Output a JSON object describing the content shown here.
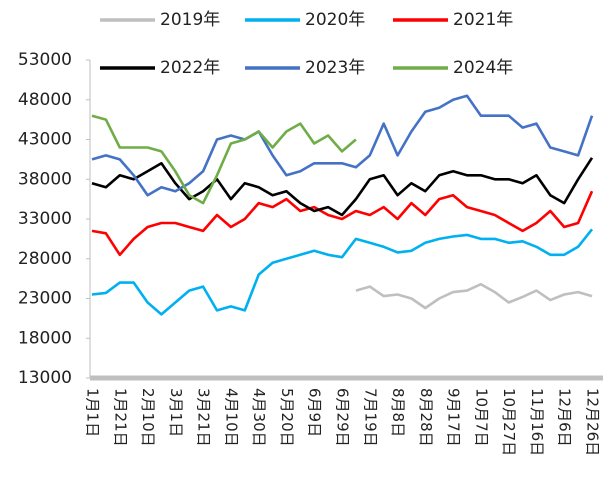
{
  "chart_data": {
    "type": "line",
    "categories": [
      "1月1日",
      null,
      "1月21日",
      null,
      "2月10日",
      null,
      "3月1日",
      null,
      "3月21日",
      null,
      "4月10日",
      null,
      "4月30日",
      null,
      "5月20日",
      null,
      "6月9日",
      null,
      "6月29日",
      null,
      "7月19日",
      null,
      "8月8日",
      null,
      "8月28日",
      null,
      "9月17日",
      null,
      "10月7日",
      null,
      "10月27日",
      null,
      "11月16日",
      null,
      "12月6日",
      null,
      "12月26日"
    ],
    "series": [
      {
        "name": "2019年",
        "color": "#bfbfbf",
        "values": [
          null,
          null,
          null,
          null,
          null,
          null,
          null,
          null,
          null,
          null,
          null,
          null,
          null,
          null,
          null,
          null,
          null,
          null,
          null,
          24000,
          24500,
          23300,
          23500,
          23000,
          21800,
          23000,
          23800,
          24000,
          24800,
          23800,
          22500,
          23200,
          24000,
          22800,
          23500,
          23800,
          23300
        ]
      },
      {
        "name": "2020年",
        "color": "#00b0f0",
        "values": [
          23500,
          23700,
          25000,
          25000,
          22500,
          21000,
          22500,
          24000,
          24500,
          21500,
          22000,
          21500,
          26000,
          27500,
          28000,
          28500,
          29000,
          28500,
          28200,
          30500,
          30000,
          29500,
          28800,
          29000,
          30000,
          30500,
          30800,
          31000,
          30500,
          30500,
          30000,
          30200,
          29500,
          28500,
          28500,
          29500,
          31700
        ]
      },
      {
        "name": "2021年",
        "color": "#ff0000",
        "values": [
          31500,
          31200,
          28500,
          30500,
          32000,
          32500,
          32500,
          32000,
          31500,
          33500,
          32000,
          33000,
          35000,
          34500,
          35500,
          34000,
          34500,
          33500,
          33000,
          34000,
          33500,
          34500,
          33000,
          35000,
          33500,
          35500,
          36000,
          34500,
          34000,
          33500,
          32500,
          31500,
          32500,
          34000,
          32000,
          32500,
          36500
        ]
      },
      {
        "name": "2022年",
        "color": "#000000",
        "values": [
          37500,
          37000,
          38500,
          38000,
          39000,
          40000,
          37500,
          35500,
          36500,
          38000,
          35500,
          37500,
          37000,
          36000,
          36500,
          35000,
          34000,
          34500,
          33500,
          35500,
          38000,
          38500,
          36000,
          37500,
          36500,
          38500,
          39000,
          38500,
          38500,
          38000,
          38000,
          37500,
          38500,
          36000,
          35000,
          38000,
          40700
        ]
      },
      {
        "name": "2023年",
        "color": "#4472c4",
        "values": [
          40500,
          41000,
          40500,
          38500,
          36000,
          37000,
          36500,
          37500,
          39000,
          43000,
          43500,
          43000,
          44000,
          41000,
          38500,
          39000,
          40000,
          40000,
          40000,
          39500,
          41000,
          45000,
          41000,
          44000,
          46500,
          47000,
          48000,
          48500,
          46000,
          46000,
          46000,
          44500,
          45000,
          42000,
          41500,
          41000,
          46000
        ]
      },
      {
        "name": "2024年",
        "color": "#70ad47",
        "values": [
          46000,
          45500,
          42000,
          42000,
          42000,
          41500,
          39000,
          36000,
          35000,
          38500,
          42500,
          43000,
          44000,
          42000,
          44000,
          45000,
          42500,
          43500,
          41500,
          43000,
          null,
          null,
          null,
          null,
          null,
          null,
          null,
          null,
          null,
          null,
          null,
          null,
          null,
          null,
          null,
          null,
          null
        ]
      }
    ],
    "ylim": [
      13000,
      53000
    ],
    "yticks": [
      13000,
      18000,
      23000,
      28000,
      33000,
      38000,
      43000,
      48000,
      53000
    ]
  }
}
